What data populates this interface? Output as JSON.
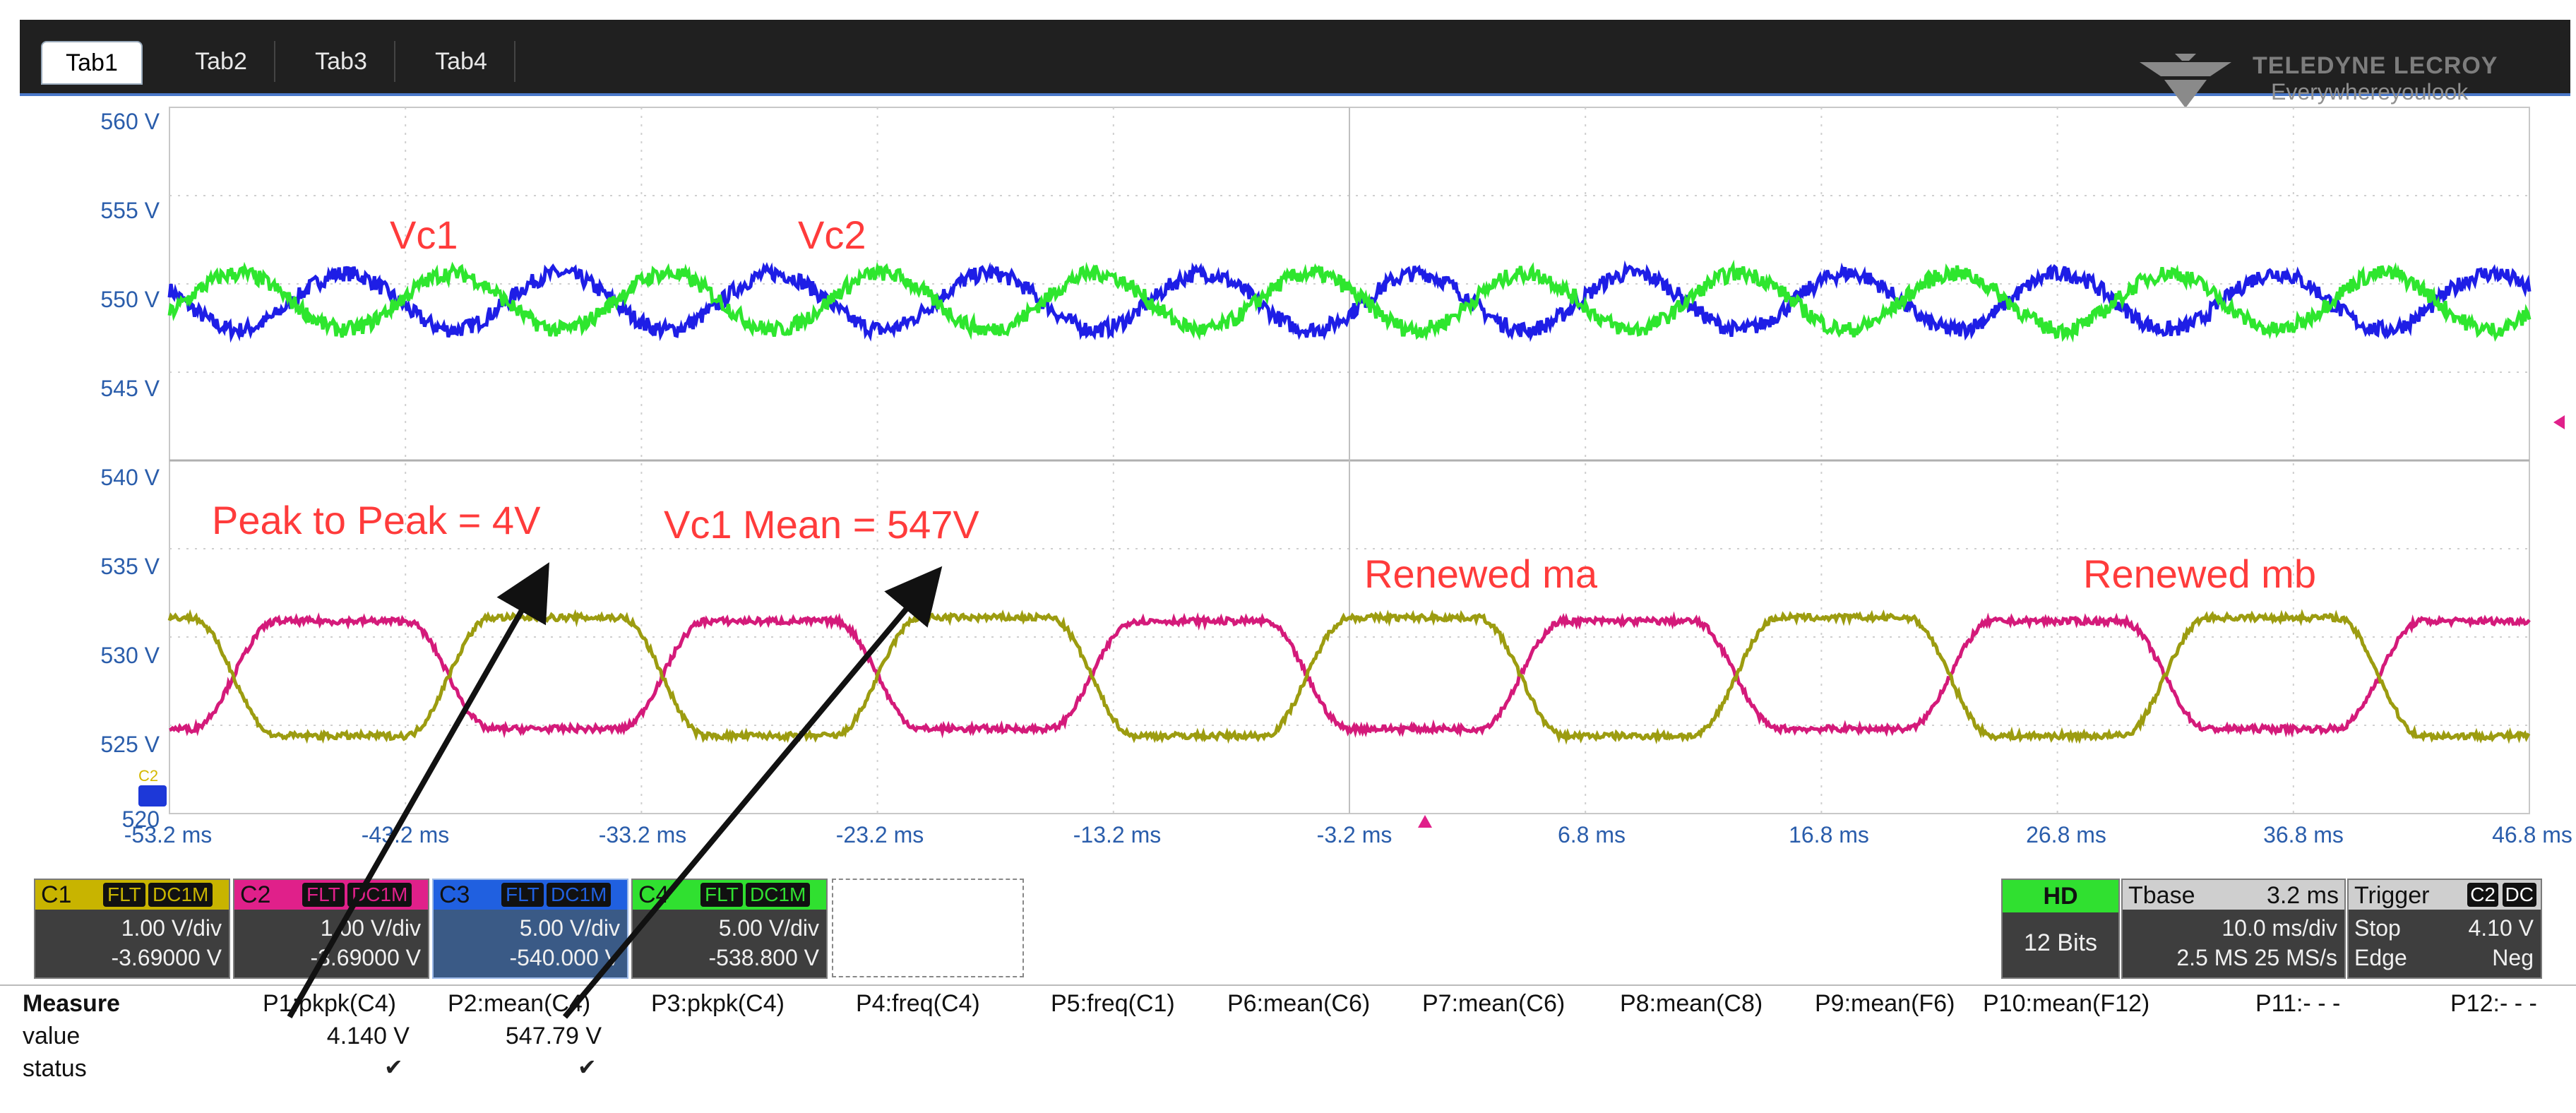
{
  "tabs": [
    "Tab1",
    "Tab2",
    "Tab3",
    "Tab4"
  ],
  "brand": {
    "name": "TELEDYNE LECROY",
    "tagline": "Everywhereyoulook"
  },
  "plot": {
    "y_labels": [
      "560 V",
      "555 V",
      "550 V",
      "545 V",
      "540 V",
      "535 V",
      "530 V",
      "525 V",
      "520"
    ],
    "x_labels": [
      "-53.2 ms",
      "-43.2 ms",
      "-33.2 ms",
      "-23.2 ms",
      "-13.2 ms",
      "-3.2 ms",
      "6.8 ms",
      "16.8 ms",
      "26.8 ms",
      "36.8 ms",
      "46.8 ms"
    ],
    "annotations": {
      "vc1": "Vc1",
      "vc2": "Vc2",
      "peak_to_peak": "Peak to Peak = 4V",
      "vc1_mean": "Vc1 Mean = 547V",
      "renewed_ma": "Renewed ma",
      "renewed_mb": "Renewed mb"
    },
    "marker_label": "C2"
  },
  "chart_data": {
    "type": "line",
    "x_label_unit": "ms",
    "xlim": [
      -58.2,
      51.8
    ],
    "upper_grid": {
      "ylim": [
        540,
        560
      ]
    },
    "lower_grid": {
      "ylim": [
        520,
        540
      ]
    },
    "series": [
      {
        "channel": "C3",
        "color": "#1e1ee6",
        "mean": 549,
        "amplitude": 1.6,
        "period_ms": 10.0,
        "phase_deg": 90
      },
      {
        "channel": "C4",
        "color": "#2ee62e",
        "mean": 549,
        "amplitude": 1.6,
        "period_ms": 10.0,
        "phase_deg": 270
      },
      {
        "channel": "C2",
        "color": "#d41a7a",
        "low": 524.8,
        "high": 530.9,
        "period_ms": 20.0,
        "phase_ms": -53.2
      },
      {
        "channel": "C1",
        "color": "#9c9c10",
        "low": 524.4,
        "high": 531.1,
        "period_ms": 20.0,
        "phase_ms": -43.2
      }
    ]
  },
  "channels": [
    {
      "id": "C1",
      "tags": [
        "FLT",
        "DC1M"
      ],
      "vdiv": "1.00 V/div",
      "offset": "-3.69000 V",
      "color": "#c8b400"
    },
    {
      "id": "C2",
      "tags": [
        "FLT",
        "DC1M"
      ],
      "vdiv": "1.00 V/div",
      "offset": "-3.69000 V",
      "color": "#e0208a"
    },
    {
      "id": "C3",
      "tags": [
        "FLT",
        "DC1M"
      ],
      "vdiv": "5.00 V/div",
      "offset": "-540.000 V",
      "color": "#2060e0"
    },
    {
      "id": "C4",
      "tags": [
        "FLT",
        "DC1M"
      ],
      "vdiv": "5.00 V/div",
      "offset": "-538.800 V",
      "color": "#30e030"
    }
  ],
  "acq": {
    "hd": "HD",
    "bits": "12 Bits",
    "tbase_label": "Tbase",
    "tbase_val": "3.2 ms",
    "tdiv": "10.0 ms/div",
    "rate": "2.5 MS  25 MS/s",
    "trigger_label": "Trigger",
    "trigger_ch": "C2",
    "trigger_cpl": "DC",
    "trig_mode": "Stop",
    "trig_level": "4.10 V",
    "trig_type": "Edge",
    "trig_slope": "Neg"
  },
  "measure": {
    "title": "Measure",
    "row_value": "value",
    "row_status": "status",
    "params": [
      "P1:pkpk(C4)",
      "P2:mean(C4)",
      "P3:pkpk(C4)",
      "P4:freq(C4)",
      "P5:freq(C1)",
      "P6:mean(C6)",
      "P7:mean(C6)",
      "P8:mean(C8)",
      "P9:mean(F6)",
      "P10:mean(F12)",
      "P11:- - -",
      "P12:- - -"
    ],
    "values": [
      "4.140 V",
      "547.79 V"
    ],
    "status_mark": "✔"
  }
}
